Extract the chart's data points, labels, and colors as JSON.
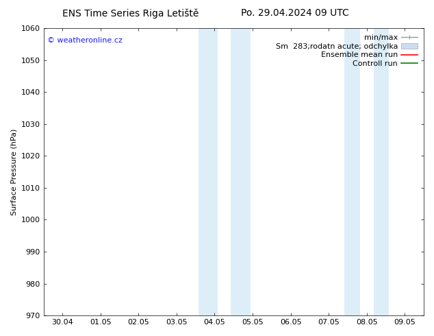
{
  "title_left": "ENS Time Series Riga Letiště",
  "title_right": "Po. 29.04.2024 09 UTC",
  "ylabel": "Surface Pressure (hPa)",
  "ylim": [
    970,
    1060
  ],
  "yticks": [
    970,
    980,
    990,
    1000,
    1010,
    1020,
    1030,
    1040,
    1050,
    1060
  ],
  "xtick_labels": [
    "30.04",
    "01.05",
    "02.05",
    "03.05",
    "04.05",
    "05.05",
    "06.05",
    "07.05",
    "08.05",
    "09.05"
  ],
  "xlim": [
    -0.5,
    9.5
  ],
  "shaded_bands": [
    {
      "x_start": 3.5,
      "x_end": 4.1
    },
    {
      "x_start": 4.4,
      "x_end": 5.1
    },
    {
      "x_start": 7.4,
      "x_end": 7.85
    },
    {
      "x_start": 8.15,
      "x_end": 8.6
    }
  ],
  "band_color": "#ddeef8",
  "watermark_text": "© weatheronline.cz",
  "watermark_color": "#1a1aff",
  "legend_min_max_color": "#999999",
  "legend_band_color": "#ccddee",
  "legend_mean_color": "#ff0000",
  "legend_control_color": "#008000",
  "bg_color": "#ffffff",
  "axes_bg_color": "#ffffff",
  "font_size_title": 10,
  "font_size_tick": 8,
  "font_size_ylabel": 8,
  "font_size_legend": 8,
  "font_size_watermark": 8
}
